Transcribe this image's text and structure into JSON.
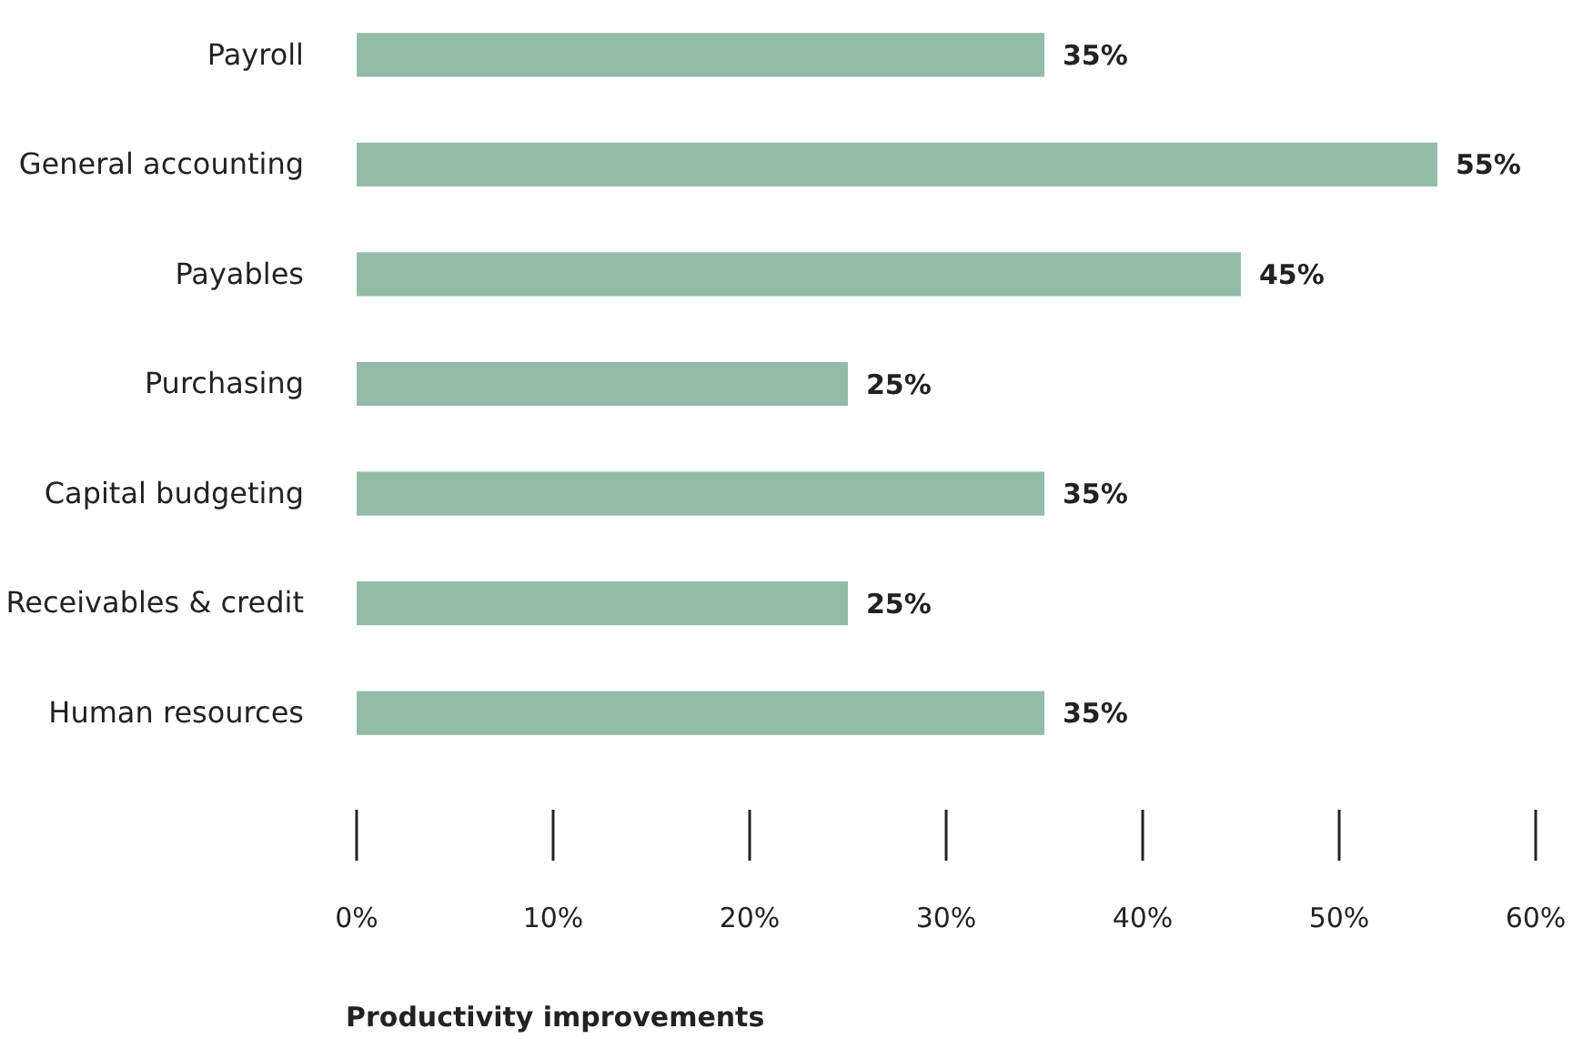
{
  "chart_data": {
    "type": "bar",
    "orientation": "horizontal",
    "xlabel": "Productivity improvements",
    "categories": [
      "Payroll",
      "General accounting",
      "Payables",
      "Purchasing",
      "Capital budgeting",
      "Receivables & credit",
      "Human resources"
    ],
    "values": [
      35,
      55,
      45,
      25,
      35,
      25,
      35
    ],
    "value_labels": [
      "35%",
      "55%",
      "45%",
      "25%",
      "35%",
      "25%",
      "35%"
    ],
    "color": "#93bca8",
    "xlim": [
      0,
      60
    ],
    "xticks": [
      {
        "value": 0,
        "label": "0%"
      },
      {
        "value": 10,
        "label": "10%"
      },
      {
        "value": 20,
        "label": "20%"
      },
      {
        "value": 30,
        "label": "30%"
      },
      {
        "value": 40,
        "label": "40%"
      },
      {
        "value": 50,
        "label": "50%"
      },
      {
        "value": 60,
        "label": "60%"
      }
    ],
    "grid": false
  }
}
